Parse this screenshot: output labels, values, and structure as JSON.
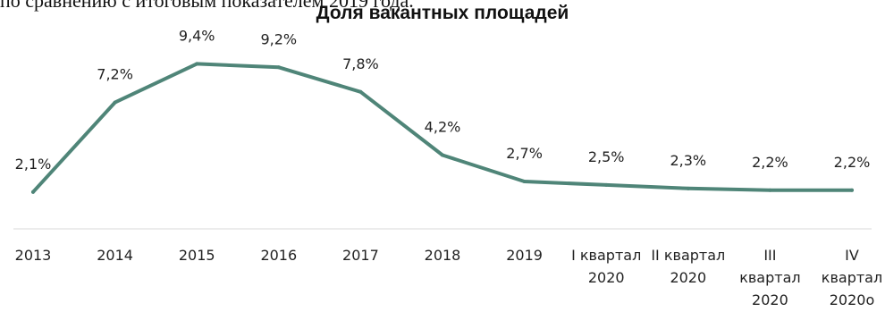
{
  "header": {
    "partial_text": "по сравнению с итоговым показателем 2019 года."
  },
  "chart_data": {
    "type": "line",
    "title": "Доля вакантных площадей",
    "categories": [
      [
        "2013"
      ],
      [
        "2014"
      ],
      [
        "2015"
      ],
      [
        "2016"
      ],
      [
        "2017"
      ],
      [
        "2018"
      ],
      [
        "2019"
      ],
      [
        "I квартал",
        "2020"
      ],
      [
        "II квартал",
        "2020"
      ],
      [
        "III",
        "квартал",
        "2020"
      ],
      [
        "IV",
        "квартал",
        "2020о"
      ]
    ],
    "series": [
      {
        "values": [
          2.1,
          7.2,
          9.4,
          9.2,
          7.8,
          4.2,
          2.7,
          2.5,
          2.3,
          2.2,
          2.2
        ],
        "labels": [
          "2,1%",
          "7,2%",
          "9,4%",
          "9,2%",
          "7,8%",
          "4,2%",
          "2,7%",
          "2,5%",
          "2,3%",
          "2,2%",
          "2,2%"
        ]
      }
    ],
    "line_color": "#4f8578",
    "grid": false,
    "legend": "none"
  }
}
